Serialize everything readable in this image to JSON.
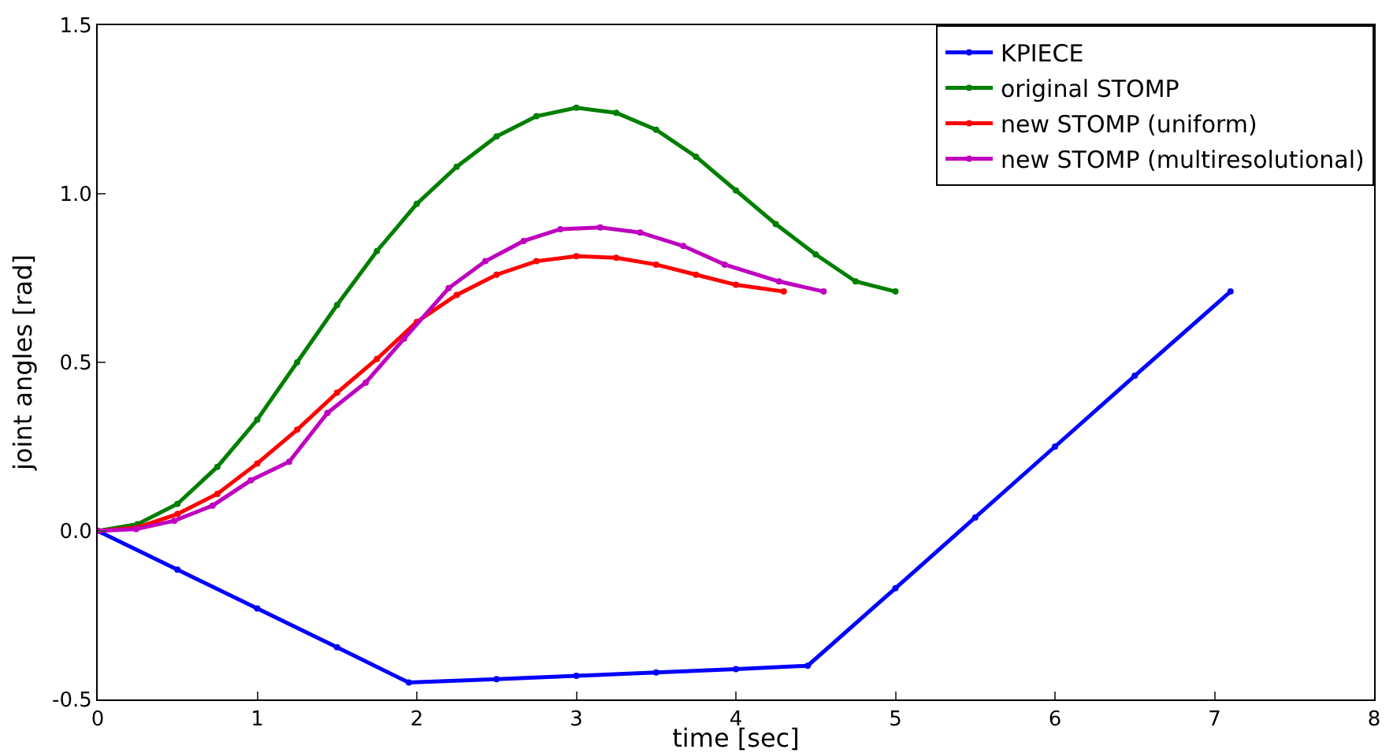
{
  "chart_data": {
    "type": "line",
    "xlabel": "time [sec]",
    "ylabel": "joint angles [rad]",
    "xlim": [
      0,
      8
    ],
    "xticks": [
      0,
      1,
      2,
      3,
      4,
      5,
      6,
      7,
      8
    ],
    "ylim": [
      -0.5,
      1.5
    ],
    "yticks": [
      -0.5,
      {
        "value": 0,
        "label": "0.0"
      },
      0.5,
      {
        "value": 1,
        "label": "1.0"
      },
      1.5
    ],
    "grid": false,
    "legend": "top right",
    "marker": "circle",
    "line_style": "solid",
    "series": [
      {
        "name": "KPIECE",
        "color": "#0000ff",
        "x": [
          0,
          0.5,
          1,
          1.5,
          1.95,
          2.5,
          3,
          3.5,
          4,
          4.45,
          5,
          5.5,
          6,
          6.5,
          7.1
        ],
        "values": [
          0,
          -0.115,
          -0.23,
          -0.345,
          -0.45,
          -0.44,
          -0.43,
          -0.42,
          -0.41,
          -0.4,
          -0.17,
          0.04,
          0.25,
          0.46,
          0.71
        ]
      },
      {
        "name": "original STOMP",
        "color": "#007f00",
        "x": [
          0,
          0.25,
          0.5,
          0.75,
          1,
          1.25,
          1.5,
          1.75,
          2,
          2.25,
          2.5,
          2.75,
          3,
          3.25,
          3.5,
          3.75,
          4,
          4.25,
          4.5,
          4.75,
          5
        ],
        "values": [
          0,
          0.02,
          0.08,
          0.19,
          0.33,
          0.5,
          0.67,
          0.83,
          0.97,
          1.08,
          1.17,
          1.23,
          1.255,
          1.24,
          1.19,
          1.11,
          1.01,
          0.91,
          0.82,
          0.74,
          0.71
        ]
      },
      {
        "name": "new STOMP (uniform)",
        "color": "#ff0000",
        "x": [
          0,
          0.25,
          0.5,
          0.75,
          1,
          1.25,
          1.5,
          1.75,
          2,
          2.25,
          2.5,
          2.75,
          3,
          3.25,
          3.5,
          3.75,
          4,
          4.3
        ],
        "values": [
          0,
          0.01,
          0.05,
          0.11,
          0.2,
          0.3,
          0.41,
          0.51,
          0.62,
          0.7,
          0.76,
          0.8,
          0.815,
          0.81,
          0.79,
          0.76,
          0.73,
          0.71
        ]
      },
      {
        "name": "new STOMP (multiresolutional)",
        "color": "#bf00bf",
        "x": [
          0,
          0.24,
          0.48,
          0.72,
          0.96,
          1.2,
          1.44,
          1.68,
          1.92,
          2.2,
          2.43,
          2.67,
          2.9,
          3.15,
          3.4,
          3.67,
          3.93,
          4.27,
          4.55
        ],
        "values": [
          0,
          0.005,
          0.03,
          0.075,
          0.15,
          0.205,
          0.35,
          0.44,
          0.57,
          0.72,
          0.8,
          0.86,
          0.895,
          0.9,
          0.885,
          0.845,
          0.79,
          0.74,
          0.71
        ]
      }
    ]
  }
}
